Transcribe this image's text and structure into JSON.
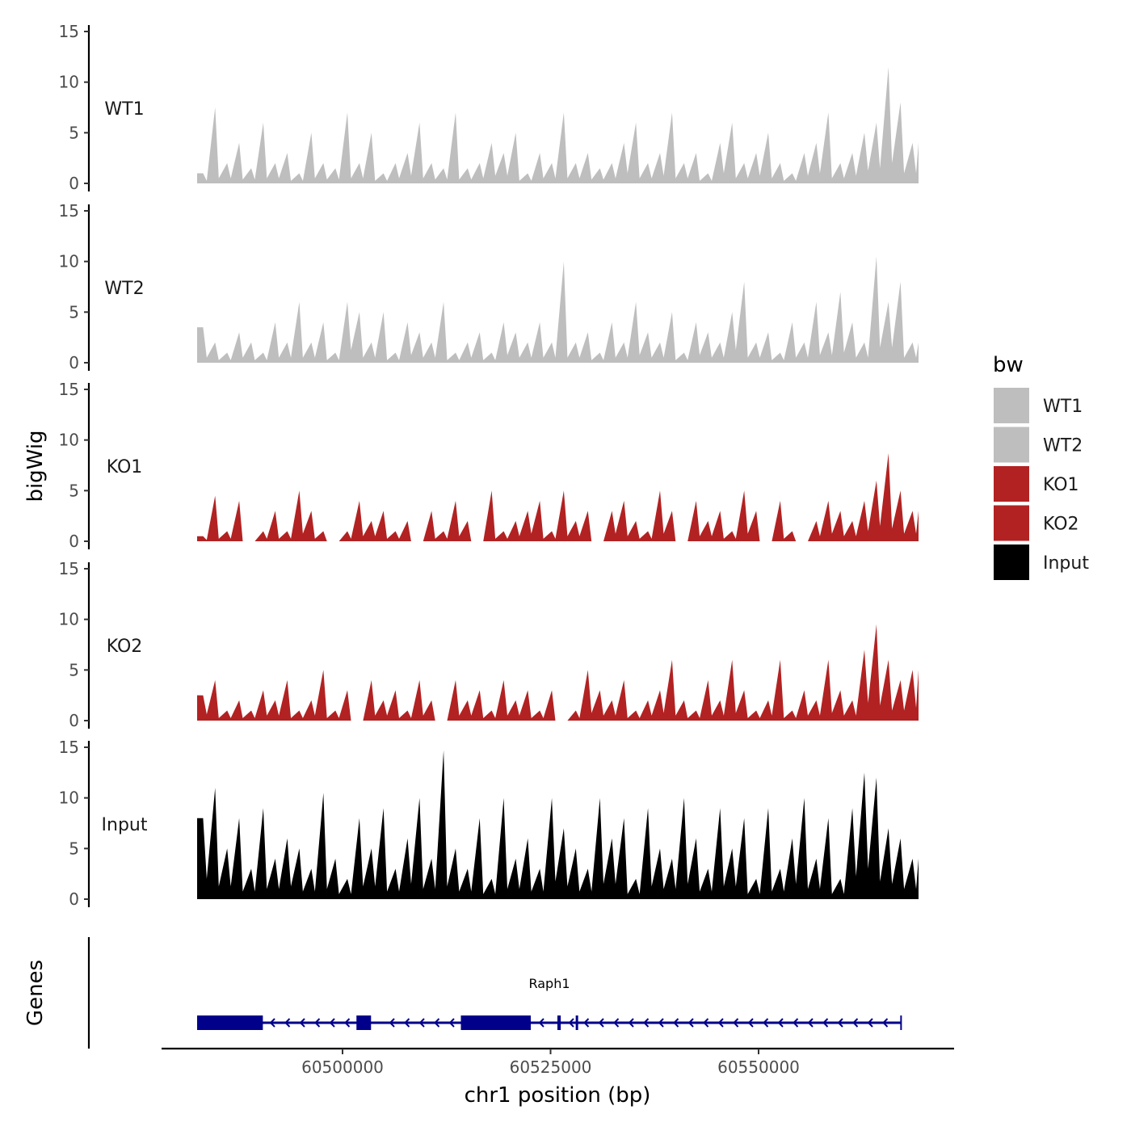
{
  "chart_data": {
    "type": "area",
    "xlabel": "chr1 position (bp)",
    "ylabel": "bigWig",
    "genes_label": "Genes",
    "xlim": [
      60482500,
      60569200
    ],
    "x_ticks": [
      60500000,
      60525000,
      60550000
    ],
    "x_tick_labels": [
      "60500000",
      "60525000",
      "60550000"
    ],
    "ylim": [
      0,
      15
    ],
    "y_ticks": [
      0,
      5,
      10,
      15
    ],
    "y_tick_labels": [
      "0",
      "5",
      "10",
      "15"
    ],
    "legend": {
      "title": "bw",
      "position": "right",
      "entries": [
        {
          "label": "WT1",
          "color": "#bebebe"
        },
        {
          "label": "WT2",
          "color": "#bebebe"
        },
        {
          "label": "KO1",
          "color": "#b22222"
        },
        {
          "label": "KO2",
          "color": "#b22222"
        },
        {
          "label": "Input",
          "color": "#000000"
        }
      ]
    },
    "bin_start": 60482500,
    "bin_size": 1445,
    "tracks": [
      {
        "name": "WT1",
        "color": "#bebebe",
        "values": [
          1,
          7.5,
          2,
          4,
          1.5,
          6,
          2,
          3,
          1,
          5,
          2,
          1.5,
          7,
          2,
          5,
          1,
          2,
          3,
          6,
          2,
          1.5,
          7,
          1.5,
          2,
          4,
          3,
          5,
          1,
          3,
          2,
          7,
          2,
          3,
          1.5,
          2,
          4,
          6,
          2,
          3,
          7,
          2,
          3,
          1,
          4,
          6,
          2,
          3,
          5,
          2,
          1,
          3,
          4,
          7,
          2,
          3,
          5,
          6,
          11.5,
          8,
          4
        ]
      },
      {
        "name": "WT2",
        "color": "#bebebe",
        "values": [
          3.5,
          2,
          1,
          3,
          2,
          1,
          4,
          2,
          6,
          2,
          4,
          1,
          6,
          5,
          2,
          5,
          1,
          4,
          3,
          2,
          6,
          1,
          2,
          3,
          1,
          4,
          3,
          2,
          4,
          2,
          10,
          2,
          3,
          1,
          4,
          2,
          6,
          3,
          2,
          5,
          1,
          4,
          3,
          2,
          5,
          8,
          2,
          3,
          1,
          4,
          2,
          6,
          3,
          7,
          4,
          2,
          10.5,
          6,
          8,
          2
        ]
      },
      {
        "name": "KO1",
        "color": "#b22222",
        "values": [
          0.5,
          4.5,
          1,
          4,
          0,
          1,
          3,
          1,
          5,
          3,
          1,
          0,
          1,
          4,
          2,
          3,
          1,
          2,
          0,
          3,
          1,
          4,
          2,
          0,
          5,
          1,
          2,
          3,
          4,
          1,
          5,
          2,
          3,
          0,
          3,
          4,
          2,
          1,
          5,
          3,
          0,
          4,
          2,
          3,
          1,
          5,
          3,
          0,
          4,
          1,
          0,
          2,
          4,
          3,
          2,
          4,
          6,
          8.7,
          5,
          3
        ]
      },
      {
        "name": "KO2",
        "color": "#b22222",
        "values": [
          2.5,
          4,
          1,
          2,
          1,
          3,
          2,
          4,
          1,
          2,
          5,
          1,
          3,
          0,
          4,
          2,
          3,
          1,
          4,
          2,
          0,
          4,
          2,
          3,
          1,
          4,
          2,
          3,
          1,
          3,
          0,
          1,
          5,
          3,
          2,
          4,
          1,
          2,
          3,
          6,
          2,
          1,
          4,
          2,
          6,
          3,
          1,
          2,
          6,
          1,
          3,
          2,
          6,
          3,
          2,
          7,
          9.5,
          6,
          4,
          5
        ]
      },
      {
        "name": "Input",
        "color": "#000000",
        "values": [
          8,
          11,
          5,
          8,
          3,
          9,
          4,
          6,
          5,
          3,
          10.5,
          4,
          2,
          8,
          5,
          9,
          3,
          6,
          10,
          4,
          14.7,
          5,
          3,
          8,
          2,
          10,
          4,
          6,
          3,
          10,
          7,
          5,
          3,
          10,
          6,
          8,
          2,
          9,
          5,
          4,
          10,
          6,
          3,
          9,
          5,
          8,
          2,
          9,
          3,
          6,
          10,
          4,
          8,
          2,
          9,
          12.5,
          12,
          7,
          6,
          4
        ]
      }
    ],
    "gene": {
      "name": "Raph1",
      "strand": "-",
      "start": 60482500,
      "end": 60567100,
      "exons": [
        [
          60482500,
          60490400
        ],
        [
          60501650,
          60503400
        ],
        [
          60514200,
          60522600
        ],
        [
          60525800,
          60526200
        ],
        [
          60528000,
          60528200
        ]
      ]
    }
  }
}
